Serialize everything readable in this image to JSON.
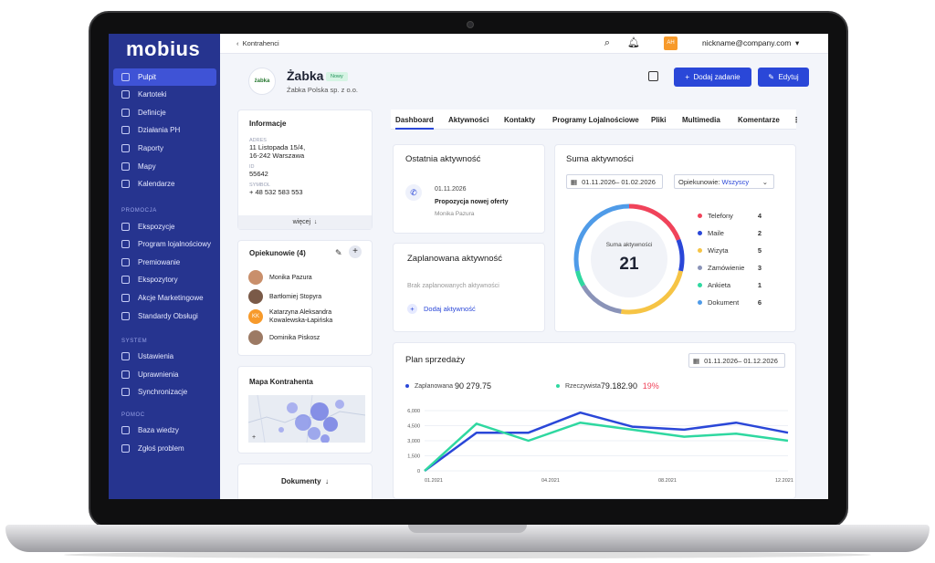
{
  "app": {
    "logo": "mobius"
  },
  "sidebar": {
    "items": [
      {
        "label": "Pulpit"
      },
      {
        "label": "Kartoteki"
      },
      {
        "label": "Definicje"
      },
      {
        "label": "Działania PH"
      },
      {
        "label": "Raporty"
      },
      {
        "label": "Mapy"
      },
      {
        "label": "Kalendarze"
      }
    ],
    "section_promo": "PROMOCJA",
    "promo_items": [
      {
        "label": "Ekspozycje"
      },
      {
        "label": "Program lojalnościowy"
      },
      {
        "label": "Premiowanie"
      },
      {
        "label": "Ekspozytory"
      },
      {
        "label": "Akcje Marketingowe"
      },
      {
        "label": "Standardy Obsługi"
      }
    ],
    "section_system": "SYSTEM",
    "system_items": [
      {
        "label": "Ustawienia"
      },
      {
        "label": "Uprawnienia"
      },
      {
        "label": "Synchronizacje"
      }
    ],
    "section_help": "POMOC",
    "help_items": [
      {
        "label": "Baza wiedzy"
      },
      {
        "label": "Zgłoś problem"
      }
    ]
  },
  "topbar": {
    "breadcrumb": "Kontrahenci",
    "avatar_initials": "AH",
    "user": "nickname@company.com"
  },
  "header": {
    "logo_text": "żabka",
    "company_name": "Żabka",
    "badge": "Nowy",
    "company_full": "Żabka Polska sp. z o.o.",
    "add_task": "Dodaj zadanie",
    "edit": "Edytuj"
  },
  "info": {
    "title": "Informacje",
    "address_label": "ADRES",
    "address_line1": "11 Listopada 15/4,",
    "address_line2": "16-242 Warszawa",
    "id_label": "ID",
    "id_value": "55642",
    "symbol_label": "SYMBOL",
    "symbol_value": "+ 48 532 583 553",
    "more": "więcej"
  },
  "caretakers": {
    "title": "Opiekunowie (4)",
    "people": [
      {
        "name": "Monika Pazura",
        "color": "#c98f6b"
      },
      {
        "name": "Bartłomiej Stopyra",
        "color": "#7a5a48"
      },
      {
        "name": "Katarzyna Aleksandra",
        "name2": "Kowalewska-Łapińska",
        "initials": "KK",
        "color": "#f79a2b"
      },
      {
        "name": "Dominika Piskosz",
        "color": "#9c7a64"
      }
    ]
  },
  "map": {
    "title": "Mapa Kontrahenta"
  },
  "documents": {
    "title": "Dokumenty"
  },
  "tabs": [
    "Dashboard",
    "Aktywności",
    "Kontakty",
    "Programy Lojalnościowe",
    "Pliki",
    "Multimedia",
    "Komentarze"
  ],
  "last_activity": {
    "title": "Ostatnia aktywność",
    "date": "01.11.2026",
    "name": "Propozycja nowej oferty",
    "person": "Monika Pazura"
  },
  "planned_activity": {
    "title": "Zaplanowana aktywność",
    "empty": "Brak zaplanowanych aktywności",
    "add": "Dodaj aktywność"
  },
  "activity_sum": {
    "title": "Suma aktywności",
    "date_range": "01.11.2026– 01.02.2026",
    "filter_label": "Opiekunowie:",
    "filter_value": "Wszyscy",
    "center_label": "Suma aktywności",
    "total": "21",
    "legend": [
      {
        "name": "Telefony",
        "count": "4",
        "color": "#f0435a"
      },
      {
        "name": "Maile",
        "count": "2",
        "color": "#2a47d8"
      },
      {
        "name": "Wizyta",
        "count": "5",
        "color": "#f6c445"
      },
      {
        "name": "Zamówienie",
        "count": "3",
        "color": "#8a93b8"
      },
      {
        "name": "Ankieta",
        "count": "1",
        "color": "#2fd8a0"
      },
      {
        "name": "Dokument",
        "count": "6",
        "color": "#4f9be8"
      }
    ]
  },
  "sales_plan": {
    "title": "Plan sprzedaży",
    "date_range": "01.11.2026– 01.12.2026",
    "planned_label": "Zaplanowana",
    "planned_value": "90 279.75",
    "actual_label": "Rzeczywista",
    "actual_value": "79.182.90",
    "percent": "19%"
  },
  "chart_data": {
    "type": "line",
    "y_ticks": [
      "6,000",
      "4,500",
      "3,000",
      "1,500",
      "0"
    ],
    "x_ticks": [
      "01.2021",
      "04.2021",
      "08.2021",
      "12.2021"
    ],
    "ylim": [
      0,
      6000
    ],
    "series": [
      {
        "name": "Zaplanowana",
        "color": "#2a47d8",
        "values": [
          0,
          3800,
          3800,
          5800,
          4400,
          4100,
          4800,
          3800
        ]
      },
      {
        "name": "Rzeczywista",
        "color": "#2fd8a0",
        "values": [
          0,
          4700,
          3000,
          4800,
          4100,
          3400,
          3700,
          3000
        ]
      }
    ]
  }
}
